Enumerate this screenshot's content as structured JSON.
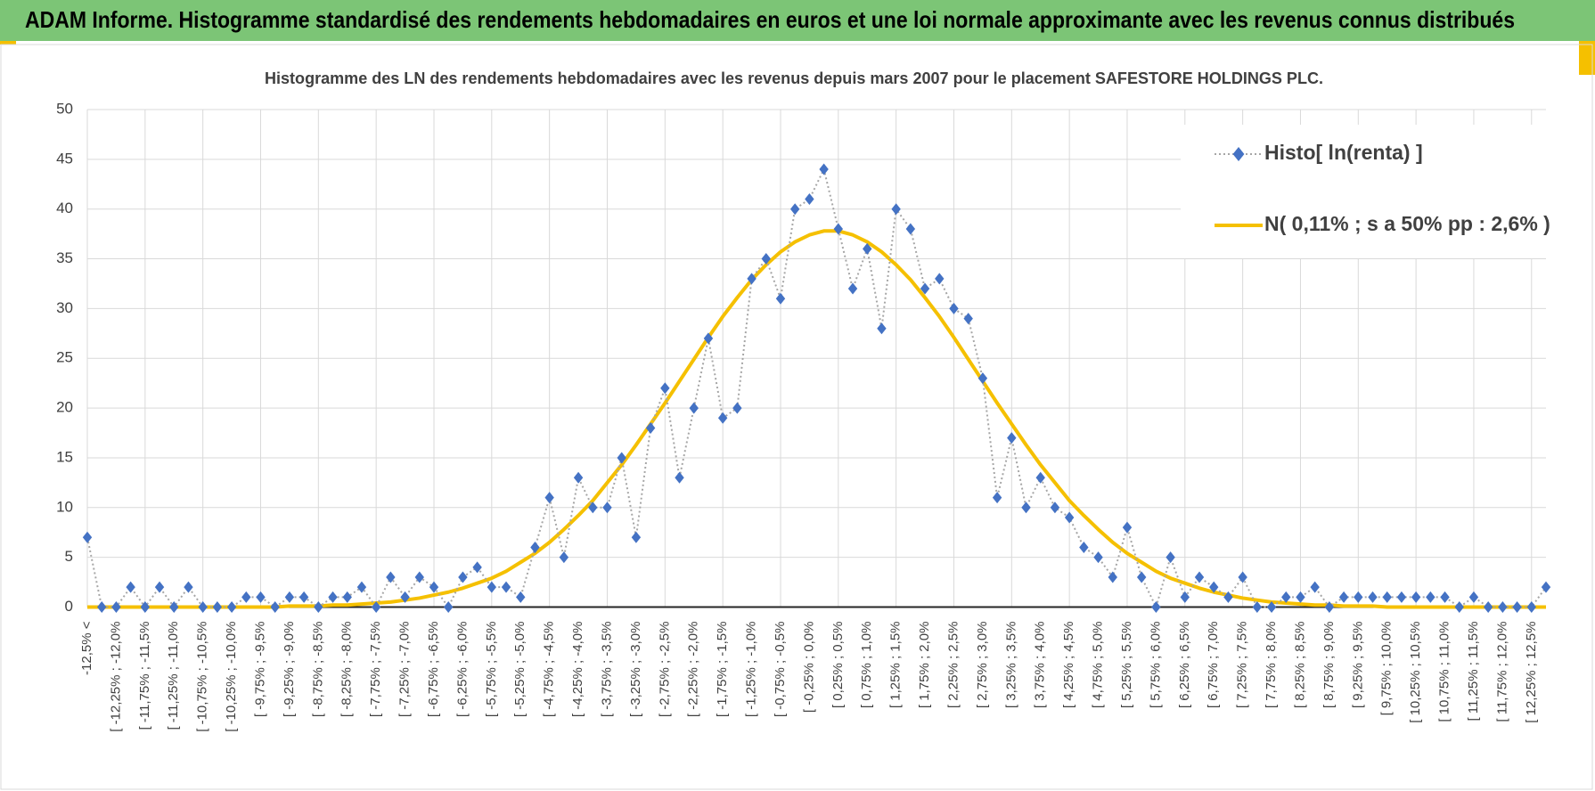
{
  "header": {
    "title": "ADAM Informe. Histogramme standardisé des rendements hebdomadaires en euros et une loi normale approximante avec les revenus connus distribués"
  },
  "chart_data": {
    "type": "line",
    "title": "Histogramme des LN des rendements hebdomadaires avec les revenus depuis mars 2007 pour le placement SAFESTORE HOLDINGS PLC.",
    "categories": [
      "-12,5% <",
      null,
      "[ -12,25% ; -12,0%",
      null,
      "[ -11,75% ; -11,5%",
      null,
      "[ -11,25% ; -11,0%",
      null,
      "[ -10,75% ; -10,5%",
      null,
      "[ -10,25% ; -10,0%",
      null,
      "[ -9,75% ; -9,5%",
      null,
      "[ -9,25% ; -9,0%",
      null,
      "[ -8,75% ; -8,5%",
      null,
      "[ -8,25% ; -8,0%",
      null,
      "[ -7,75% ; -7,5%",
      null,
      "[ -7,25% ; -7,0%",
      null,
      "[ -6,75% ; -6,5%",
      null,
      "[ -6,25% ; -6,0%",
      null,
      "[ -5,75% ; -5,5%",
      null,
      "[ -5,25% ; -5,0%",
      null,
      "[ -4,75% ; -4,5%",
      null,
      "[ -4,25% ; -4,0%",
      null,
      "[ -3,75% ; -3,5%",
      null,
      "[ -3,25% ; -3,0%",
      null,
      "[ -2,75% ; -2,5%",
      null,
      "[ -2,25% ; -2,0%",
      null,
      "[ -1,75% ; -1,5%",
      null,
      "[ -1,25% ; -1,0%",
      null,
      "[ -0,75% ; -0,5%",
      null,
      "[ -0,25% ; 0,0%",
      null,
      "[ 0,25% ; 0,5%",
      null,
      "[ 0,75% ; 1,0%",
      null,
      "[ 1,25% ; 1,5%",
      null,
      "[ 1,75% ; 2,0%",
      null,
      "[ 2,25% ; 2,5%",
      null,
      "[ 2,75% ; 3,0%",
      null,
      "[ 3,25% ; 3,5%",
      null,
      "[ 3,75% ; 4,0%",
      null,
      "[ 4,25% ; 4,5%",
      null,
      "[ 4,75% ; 5,0%",
      null,
      "[ 5,25% ; 5,5%",
      null,
      "[ 5,75% ; 6,0%",
      null,
      "[ 6,25% ; 6,5%",
      null,
      "[ 6,75% ; 7,0%",
      null,
      "[ 7,25% ; 7,5%",
      null,
      "[ 7,75% ; 8,0%",
      null,
      "[ 8,25% ; 8,5%",
      null,
      "[ 8,75% ; 9,0%",
      null,
      "[ 9,25% ; 9,5%",
      null,
      "[ 9,75% ; 10,0%",
      null,
      "[ 10,25% ; 10,5%",
      null,
      "[ 10,75% ; 11,0%",
      null,
      "[ 11,25% ; 11,5%",
      null,
      "[ 11,75% ; 12,0%",
      null,
      "[ 12,25% ; 12,5%",
      null
    ],
    "series": [
      {
        "name": "Histo[ ln(renta) ]",
        "color": "#4472c4",
        "line_color": "#a6a6a6",
        "marker": "diamond",
        "values": [
          7,
          0,
          0,
          2,
          0,
          2,
          0,
          2,
          0,
          0,
          0,
          1,
          1,
          0,
          1,
          1,
          0,
          1,
          1,
          2,
          0,
          3,
          1,
          3,
          2,
          0,
          3,
          4,
          2,
          2,
          1,
          6,
          11,
          5,
          13,
          10,
          10,
          15,
          7,
          18,
          22,
          13,
          20,
          27,
          19,
          20,
          33,
          35,
          31,
          40,
          41,
          44,
          38,
          32,
          36,
          28,
          40,
          38,
          32,
          33,
          30,
          29,
          23,
          11,
          17,
          10,
          13,
          10,
          9,
          6,
          5,
          3,
          8,
          3,
          0,
          5,
          1,
          3,
          2,
          1,
          3,
          0,
          0,
          1,
          1,
          2,
          0,
          1,
          1,
          1,
          1,
          1,
          1,
          1,
          1,
          0,
          1,
          0,
          0,
          0,
          0,
          2
        ]
      },
      {
        "name": "N( 0,11% ; s a 50% pp : 2,6% )",
        "color": "#f5c000",
        "marker": "none",
        "values": [
          0,
          0,
          0,
          0,
          0,
          0,
          0,
          0,
          0,
          0,
          0,
          0,
          0,
          0,
          0.1,
          0.1,
          0.1,
          0.2,
          0.2,
          0.3,
          0.4,
          0.5,
          0.7,
          0.9,
          1.2,
          1.5,
          1.9,
          2.4,
          2.9,
          3.6,
          4.5,
          5.4,
          6.5,
          7.8,
          9.2,
          10.7,
          12.5,
          14.3,
          16.3,
          18.4,
          20.5,
          22.7,
          24.9,
          27.1,
          29.2,
          31.1,
          32.9,
          34.4,
          35.7,
          36.7,
          37.4,
          37.8,
          37.8,
          37.4,
          36.7,
          35.7,
          34.4,
          32.9,
          31.1,
          29.2,
          27.1,
          24.9,
          22.7,
          20.5,
          18.4,
          16.3,
          14.3,
          12.5,
          10.7,
          9.2,
          7.8,
          6.5,
          5.4,
          4.5,
          3.6,
          2.9,
          2.4,
          1.9,
          1.5,
          1.2,
          0.9,
          0.7,
          0.5,
          0.4,
          0.3,
          0.2,
          0.2,
          0.1,
          0.1,
          0.1,
          0,
          0,
          0,
          0,
          0,
          0,
          0,
          0,
          0,
          0,
          0,
          0
        ]
      }
    ],
    "ylim": [
      0,
      50
    ],
    "yticks": [
      0,
      5,
      10,
      15,
      20,
      25,
      30,
      35,
      40,
      45,
      50
    ],
    "grid": true,
    "legend": "top-right"
  }
}
